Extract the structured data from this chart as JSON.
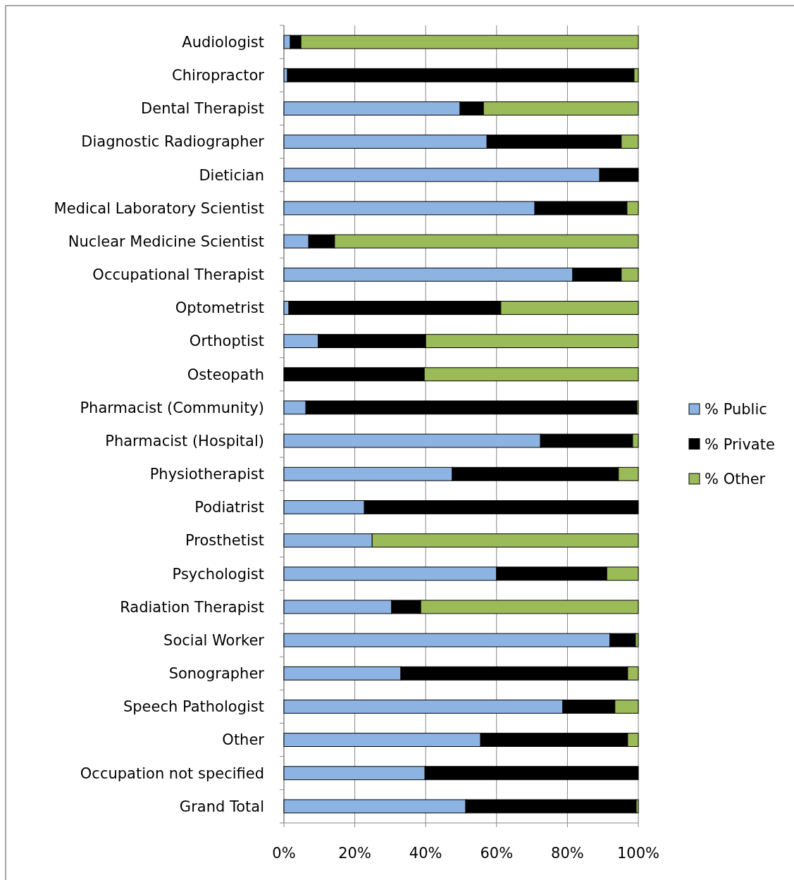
{
  "chart_data": {
    "type": "bar",
    "orientation": "horizontal",
    "stacked": true,
    "grid": "x",
    "legend": "right",
    "categories": [
      "Audiologist",
      "Chiropractor",
      "Dental Therapist",
      "Diagnostic Radiographer",
      "Dietician",
      "Medical Laboratory Scientist",
      "Nuclear Medicine Scientist",
      "Occupational Therapist",
      "Optometrist",
      "Orthoptist",
      "Osteopath",
      "Pharmacist (Community)",
      "Pharmacist (Hospital)",
      "Physiotherapist",
      "Podiatrist",
      "Prosthetist",
      "Psychologist",
      "Radiation Therapist",
      "Social Worker",
      "Sonographer",
      "Speech Pathologist",
      "Other",
      "Occupation not specified",
      "Grand Total"
    ],
    "series": [
      {
        "name": "% Public",
        "color": "#8db3e2",
        "values": [
          1.8,
          1.0,
          49.7,
          57.3,
          89.1,
          70.8,
          7.0,
          81.5,
          1.4,
          9.7,
          0,
          6.2,
          72.4,
          47.5,
          22.7,
          24.9,
          60.0,
          30.4,
          92.0,
          33.0,
          78.7,
          55.5,
          39.8,
          51.3
        ]
      },
      {
        "name": "% Private",
        "color": "#000000",
        "values": [
          3.0,
          97.8,
          6.6,
          37.9,
          10.9,
          26.0,
          7.3,
          13.7,
          59.8,
          30.3,
          39.6,
          93.4,
          26.0,
          46.9,
          77.3,
          0,
          31.1,
          8.2,
          7.2,
          64.0,
          14.7,
          41.5,
          60.2,
          48.1
        ]
      },
      {
        "name": "% Other",
        "color": "#9bbb59",
        "values": [
          95.2,
          1.2,
          43.7,
          4.8,
          0,
          3.2,
          85.7,
          4.8,
          38.8,
          60.0,
          60.4,
          0.4,
          1.6,
          5.6,
          0,
          75.1,
          8.9,
          61.4,
          0.8,
          3.0,
          6.6,
          3.0,
          0,
          0.6
        ]
      }
    ],
    "xlim": [
      0,
      100
    ],
    "xticks": [
      {
        "value": 0,
        "label": "0%"
      },
      {
        "value": 20,
        "label": "20%"
      },
      {
        "value": 40,
        "label": "40%"
      },
      {
        "value": 60,
        "label": "60%"
      },
      {
        "value": 80,
        "label": "80%"
      },
      {
        "value": 100,
        "label": "100%"
      }
    ]
  }
}
